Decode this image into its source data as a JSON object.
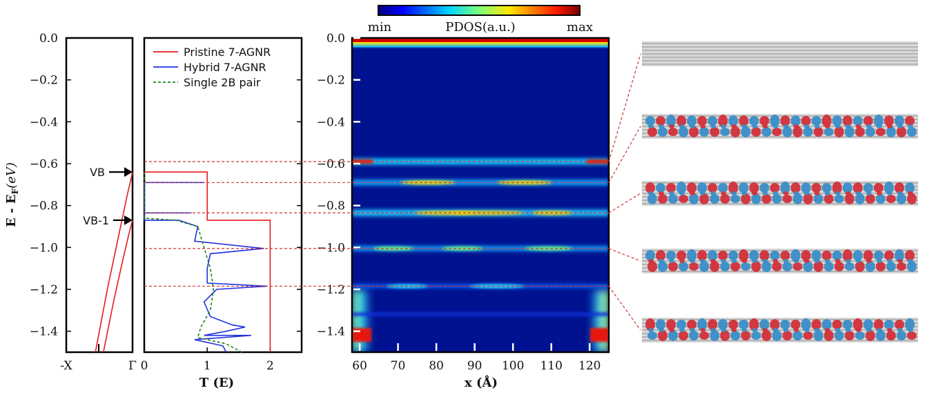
{
  "chart_data": [
    {
      "type": "line",
      "panel": "band-structure",
      "ylabel": "E - E",
      "ylabel_sub": "F",
      "ylabel_unit": "(eV)",
      "ylim": [
        -1.5,
        0.0
      ],
      "yticks": [
        "0.0",
        "−0.2",
        "−0.4",
        "−0.6",
        "−0.8",
        "−1.0",
        "−1.2",
        "−1.4"
      ],
      "x_tick_labels": [
        "-X",
        "Γ"
      ],
      "series": [
        {
          "x": [
            0.44,
            0.62,
            0.8,
            0.92,
            0.98,
            1.0
          ],
          "y": [
            -1.5,
            -1.2,
            -0.93,
            -0.75,
            -0.67,
            -0.64
          ]
        },
        {
          "x": [
            0.56,
            0.72,
            0.86,
            0.95,
            1.0
          ],
          "y": [
            -1.5,
            -1.25,
            -1.05,
            -0.93,
            -0.87
          ]
        }
      ],
      "annotations": [
        {
          "text": "VB",
          "y": -0.64
        },
        {
          "text": "VB-1",
          "y": -0.87
        }
      ]
    },
    {
      "type": "line",
      "panel": "transmission",
      "xlabel": "T (E)",
      "xlim": [
        0,
        2.5
      ],
      "xticks": [
        "0",
        "1",
        "2"
      ],
      "ylim": [
        -1.5,
        0.0
      ],
      "legend": "top-right",
      "series": [
        {
          "name": "Pristine 7-AGNR",
          "color": "#e8191b",
          "style": "solid",
          "points": [
            [
              0,
              -0.64
            ],
            [
              1,
              -0.64
            ],
            [
              1,
              -0.87
            ],
            [
              2,
              -0.87
            ],
            [
              2,
              -1.5
            ]
          ]
        },
        {
          "name": "Hybrid 7-AGNR",
          "color": "#1f2fe0",
          "style": "solid",
          "points": [
            [
              0,
              -0.69
            ],
            [
              0.95,
              -0.69
            ],
            [
              0,
              -0.69
            ],
            [
              0,
              -0.835
            ],
            [
              0.75,
              -0.835
            ],
            [
              0,
              -0.835
            ],
            [
              0,
              -0.87
            ],
            [
              0.55,
              -0.87
            ],
            [
              0.85,
              -0.9
            ],
            [
              0.8,
              -0.97
            ],
            [
              1.9,
              -1.005
            ],
            [
              1.05,
              -1.03
            ],
            [
              1.0,
              -1.1
            ],
            [
              1.0,
              -1.17
            ],
            [
              1.95,
              -1.185
            ],
            [
              1.15,
              -1.2
            ],
            [
              0.95,
              -1.26
            ],
            [
              1.05,
              -1.33
            ],
            [
              1.4,
              -1.37
            ],
            [
              1.6,
              -1.38
            ],
            [
              1.3,
              -1.4
            ],
            [
              0.95,
              -1.42
            ],
            [
              1.7,
              -1.42
            ],
            [
              0.8,
              -1.44
            ],
            [
              1.25,
              -1.47
            ],
            [
              1.3,
              -1.5
            ]
          ]
        },
        {
          "name": "Single 2B pair",
          "color": "#1a7f1a",
          "style": "dashed",
          "points": [
            [
              0,
              -0.64
            ],
            [
              0,
              -0.86
            ],
            [
              0.5,
              -0.87
            ],
            [
              0.85,
              -0.9
            ],
            [
              0.95,
              -1.0
            ],
            [
              1.05,
              -1.1
            ],
            [
              1.1,
              -1.2
            ],
            [
              1.05,
              -1.3
            ],
            [
              0.9,
              -1.38
            ],
            [
              0.85,
              -1.43
            ],
            [
              1.3,
              -1.46
            ],
            [
              1.55,
              -1.5
            ]
          ]
        }
      ]
    },
    {
      "type": "heatmap",
      "panel": "pdos",
      "xlabel": "x (Å)",
      "xlim": [
        58,
        125
      ],
      "xticks": [
        "60",
        "70",
        "80",
        "90",
        "100",
        "110",
        "120"
      ],
      "ylim": [
        -1.5,
        0.0
      ],
      "yticks": [
        "0.0",
        "−0.2",
        "−0.4",
        "−0.6",
        "−0.8",
        "−1.0",
        "−1.2",
        "−1.4"
      ],
      "colorbar_label": "PDOS(a.u.)",
      "colorbar_min": "min",
      "colorbar_max": "max",
      "bands_energy": [
        -0.59,
        -0.69,
        -0.835,
        -1.005,
        -1.185
      ],
      "dashed_connector_energies": [
        -0.59,
        -0.69,
        -0.835,
        -1.005,
        -1.185
      ]
    }
  ]
}
